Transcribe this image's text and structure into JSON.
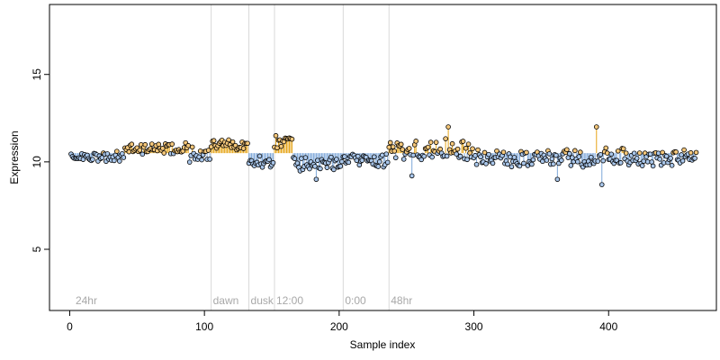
{
  "chart_data": {
    "type": "scatter",
    "title": "",
    "xlabel": "Sample index",
    "ylabel": "Expression",
    "xlim": [
      -15,
      480
    ],
    "ylim": [
      1.5,
      19
    ],
    "xticks": [
      0,
      100,
      200,
      300,
      400
    ],
    "yticks": [
      5,
      10,
      15
    ],
    "grid": false,
    "legend": "none",
    "baseline": 10.5,
    "colors": {
      "above": "#e6a417",
      "below": "#7da7d9",
      "point_edge": "#000000",
      "point_fill_above": "#f5c77a",
      "point_fill_below": "#a9c6ea",
      "vline": "#d9d9d9",
      "annotation": "#a8a8a8"
    },
    "annotations": [
      {
        "label": "24hr",
        "x": 3
      },
      {
        "label": "dawn",
        "x": 105
      },
      {
        "label": "dusk",
        "x": 133
      },
      {
        "label": "12:00",
        "x": 152
      },
      {
        "label": "0:00",
        "x": 203
      },
      {
        "label": "48hr",
        "x": 237
      }
    ],
    "vlines": [
      105,
      133,
      152,
      203,
      237
    ],
    "n_samples": 465,
    "segments": [
      {
        "x0": 1,
        "x1": 40,
        "mean": 10.3,
        "amp": 0.25
      },
      {
        "x0": 41,
        "x1": 88,
        "mean": 10.75,
        "amp": 0.3
      },
      {
        "x0": 89,
        "x1": 104,
        "mean": 10.4,
        "amp": 0.4
      },
      {
        "x0": 105,
        "x1": 132,
        "mean": 11.0,
        "amp": 0.3
      },
      {
        "x0": 133,
        "x1": 151,
        "mean": 10.0,
        "amp": 0.3
      },
      {
        "x0": 152,
        "x1": 165,
        "mean": 11.1,
        "amp": 0.35
      },
      {
        "x0": 166,
        "x1": 202,
        "mean": 9.9,
        "amp": 0.35
      },
      {
        "x0": 203,
        "x1": 236,
        "mean": 10.1,
        "amp": 0.35
      },
      {
        "x0": 237,
        "x1": 300,
        "mean": 10.7,
        "amp": 0.5
      },
      {
        "x0": 301,
        "x1": 390,
        "mean": 10.2,
        "amp": 0.45
      },
      {
        "x0": 391,
        "x1": 413,
        "mean": 10.4,
        "amp": 0.45
      },
      {
        "x0": 414,
        "x1": 465,
        "mean": 10.2,
        "amp": 0.4
      }
    ],
    "notable_points": [
      {
        "x": 391,
        "y": 12.0
      },
      {
        "x": 281,
        "y": 12.0
      },
      {
        "x": 183,
        "y": 9.0
      },
      {
        "x": 395,
        "y": 8.7
      },
      {
        "x": 362,
        "y": 9.0
      },
      {
        "x": 254,
        "y": 9.2
      }
    ]
  }
}
